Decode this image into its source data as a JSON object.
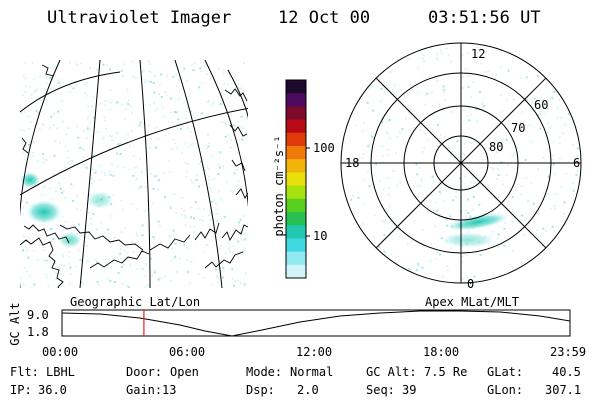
{
  "header": {
    "instrument": "Ultraviolet Imager",
    "date": "12 Oct 00",
    "time": "03:51:56 UT"
  },
  "colorbar": {
    "unit_label": "photon cm⁻²s⁻¹",
    "ticks": [
      "100",
      "10"
    ],
    "colors": [
      "#1a0a2e",
      "#4b0a5e",
      "#7a0a2a",
      "#b80a16",
      "#e03a0a",
      "#f07a0a",
      "#f0b40a",
      "#e8e00a",
      "#a8e010",
      "#58d020",
      "#28c050",
      "#20c8b0",
      "#40d8e0",
      "#90e8f0",
      "#d0f4f8"
    ]
  },
  "polar_plot": {
    "mlt_labels": [
      "12",
      "18",
      "6",
      "0"
    ],
    "lat_labels": [
      "60",
      "70",
      "80"
    ]
  },
  "panels": {
    "left_caption": "Geographic Lat/Lon",
    "right_caption": "Apex MLat/MLT"
  },
  "altitude_plot": {
    "ylabel": "GC Alt",
    "yticks": [
      "9.0",
      "1.8"
    ],
    "xticks": [
      "00:00",
      "06:00",
      "12:00",
      "18:00",
      "23:59"
    ],
    "current_time_marker_hours": 3.87,
    "marker_color": "#e02020"
  },
  "info": {
    "filter_label": "Flt:",
    "filter_value": "LBHL",
    "door_label": "Door:",
    "door_value": "Open",
    "mode_label": "Mode:",
    "mode_value": "Normal",
    "gcalt_label": "GC Alt:",
    "gcalt_value": "7.5 Re",
    "glat_label": "GLat:",
    "glat_value": "40.5",
    "ip_label": "IP:",
    "ip_value": "36.0",
    "gain_label": "Gain:",
    "gain_value": "13",
    "dsp_label": "Dsp:",
    "dsp_value": "2.0",
    "seq_label": "Seq:",
    "seq_value": "39",
    "glon_label": "GLon:",
    "glon_value": "307.1"
  }
}
